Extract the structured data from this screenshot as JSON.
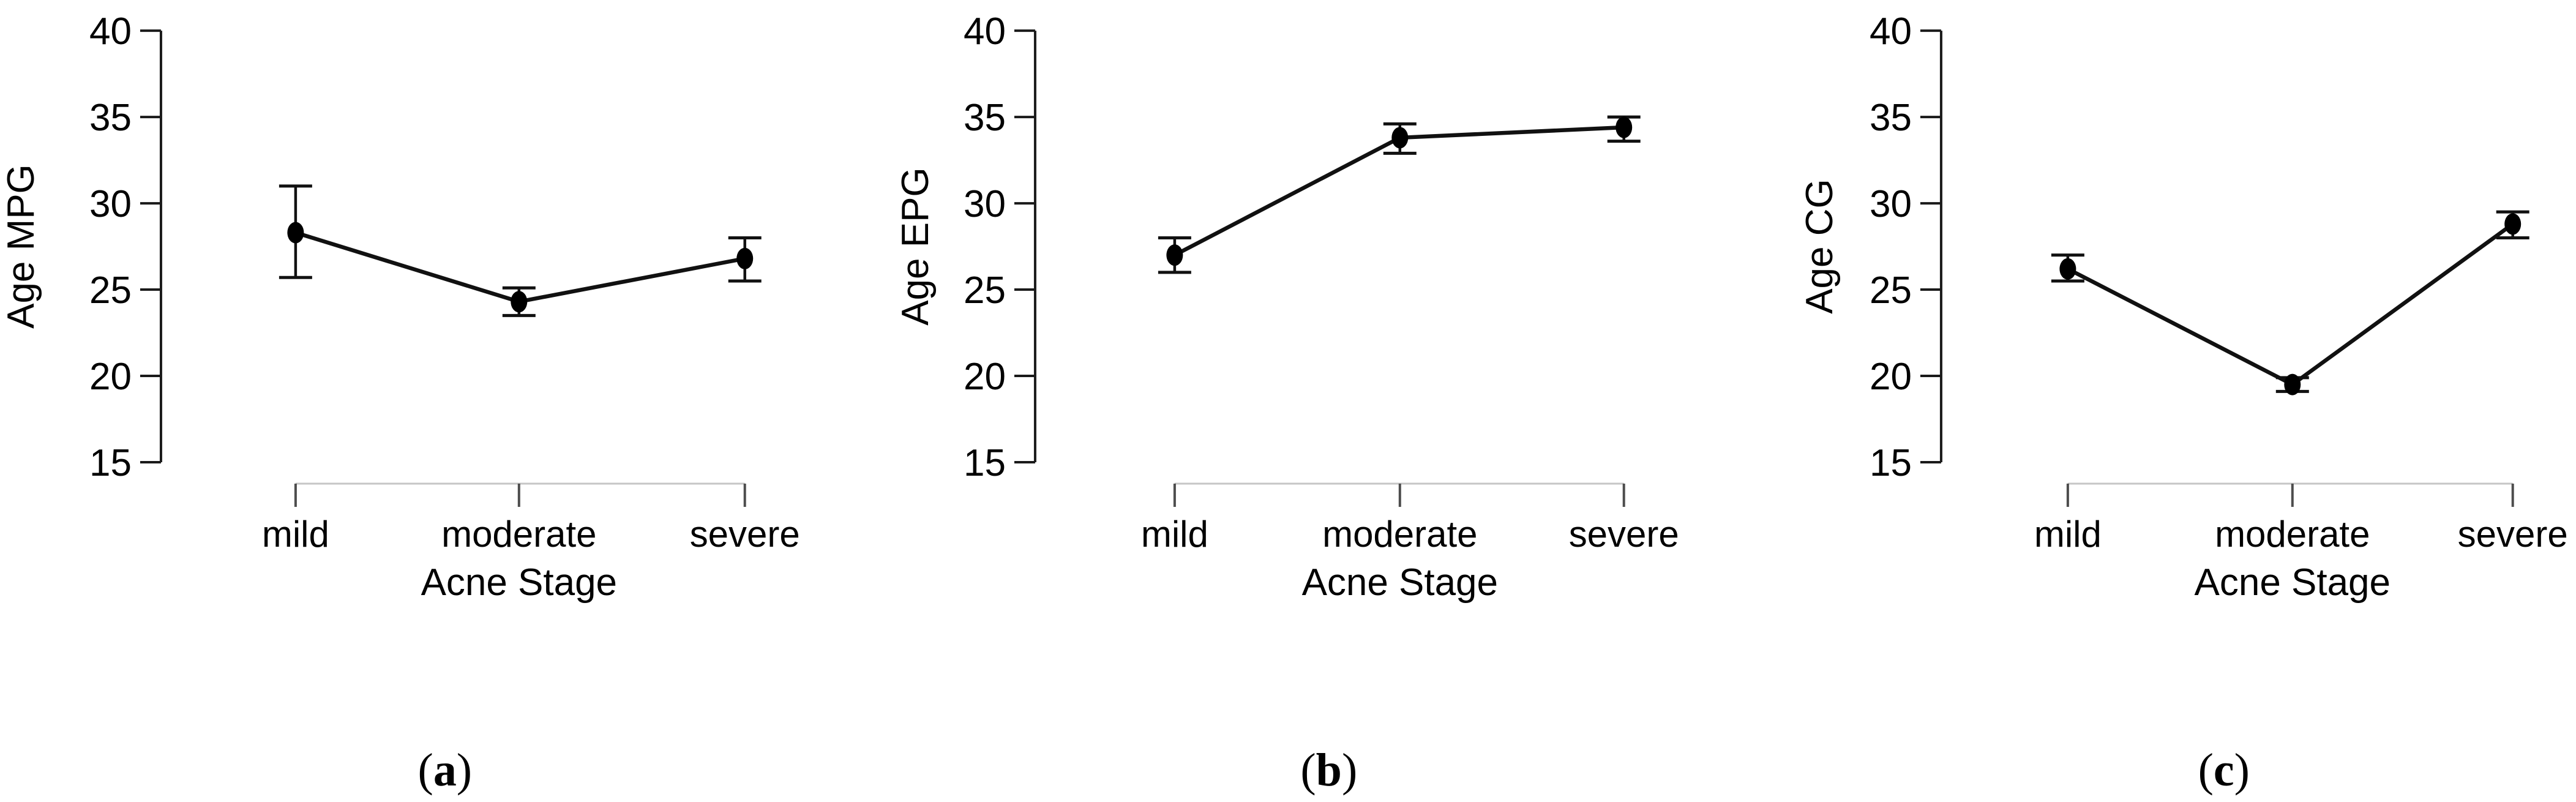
{
  "figure": {
    "background_color": "#ffffff",
    "point_color": "#000000",
    "line_color": "#111111",
    "error_bar_color": "#111111",
    "y_axis_color": "#1a1a1a",
    "x_axis_line_color": "#c6c6c6",
    "x_tick_color": "#4d4d4d",
    "text_color": "#000000"
  },
  "chart_data": [
    {
      "type": "line",
      "panel_label": "(a)",
      "panel_letter": "a",
      "ylabel": "Age MPG",
      "xlabel": "Acne Stage",
      "categories": [
        "mild",
        "moderate",
        "severe"
      ],
      "yticks": [
        15,
        20,
        25,
        30,
        35,
        40
      ],
      "ylim": [
        15,
        40
      ],
      "grid": "off",
      "legend": "none",
      "series": [
        {
          "name": "Age MPG mean with error bars",
          "values": [
            28.3,
            24.3,
            26.8
          ],
          "error_low": [
            25.7,
            23.5,
            25.5
          ],
          "error_high": [
            31.0,
            25.1,
            28.0
          ]
        }
      ]
    },
    {
      "type": "line",
      "panel_label": "(b)",
      "panel_letter": "b",
      "ylabel": "Age EPG",
      "xlabel": "Acne Stage",
      "categories": [
        "mild",
        "moderate",
        "severe"
      ],
      "yticks": [
        15,
        20,
        25,
        30,
        35,
        40
      ],
      "ylim": [
        15,
        40
      ],
      "grid": "off",
      "legend": "none",
      "series": [
        {
          "name": "Age EPG mean with error bars",
          "values": [
            27.0,
            33.8,
            34.4
          ],
          "error_low": [
            26.0,
            32.9,
            33.6
          ],
          "error_high": [
            28.0,
            34.6,
            35.0
          ]
        }
      ]
    },
    {
      "type": "line",
      "panel_label": "(c)",
      "panel_letter": "c",
      "ylabel": "Age CG",
      "xlabel": "Acne Stage",
      "categories": [
        "mild",
        "moderate",
        "severe"
      ],
      "yticks": [
        15,
        20,
        25,
        30,
        35,
        40
      ],
      "ylim": [
        15,
        40
      ],
      "grid": "off",
      "legend": "none",
      "series": [
        {
          "name": "Age CG mean with error bars",
          "values": [
            26.2,
            19.5,
            28.8
          ],
          "error_low": [
            25.5,
            19.1,
            28.0
          ],
          "error_high": [
            27.0,
            19.9,
            29.5
          ]
        }
      ]
    }
  ]
}
